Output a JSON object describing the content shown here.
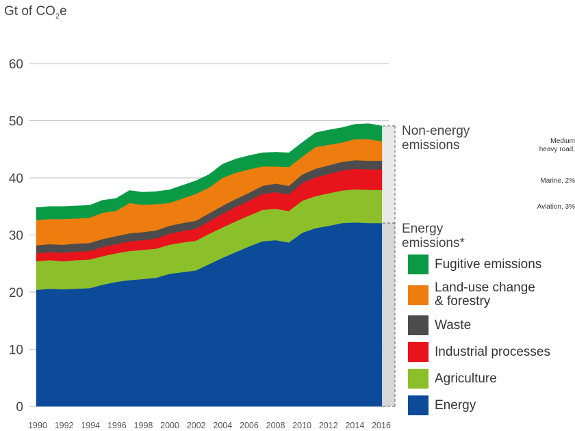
{
  "unit_label": {
    "main": "Gt of CO",
    "sub": "2",
    "suffix": "e"
  },
  "brackets": {
    "non_energy": "Non-energy\nemissions",
    "energy": "Energy\nemissions*"
  },
  "side_notes": {
    "road": "Medium\nheavy road,",
    "marine": "Marine, 2%",
    "aviation": "Aviation, 3%"
  },
  "legend": [
    {
      "label": "Fugitive emissions",
      "color": "#0a9a45"
    },
    {
      "label": "Land-use change\n& forestry",
      "color": "#ee7d0f"
    },
    {
      "label": "Waste",
      "color": "#4c4c4c"
    },
    {
      "label": "Industrial processes",
      "color": "#e8141c"
    },
    {
      "label": "Agriculture",
      "color": "#8cc02b"
    },
    {
      "label": "Energy",
      "color": "#0c4a9a"
    }
  ],
  "chart_data": {
    "type": "area",
    "stacked": true,
    "ylabel": "Gt of CO2e",
    "ylim": [
      0,
      60
    ],
    "yticks": [
      0,
      10,
      20,
      30,
      40,
      50,
      60
    ],
    "xticks": [
      1990,
      1992,
      1994,
      1996,
      1998,
      2000,
      2002,
      2004,
      2006,
      2008,
      2010,
      2012,
      2014,
      2016
    ],
    "grid": "horizontal",
    "x": [
      1990,
      1991,
      1992,
      1993,
      1994,
      1995,
      1996,
      1997,
      1998,
      1999,
      2000,
      2001,
      2002,
      2003,
      2004,
      2005,
      2006,
      2007,
      2008,
      2009,
      2010,
      2011,
      2012,
      2013,
      2014,
      2015,
      2016
    ],
    "series": [
      {
        "name": "Energy",
        "color": "#0c4a9a",
        "values": [
          20.4,
          20.6,
          20.5,
          20.6,
          20.7,
          21.3,
          21.8,
          22.1,
          22.3,
          22.5,
          23.2,
          23.5,
          23.8,
          24.9,
          26.0,
          27.0,
          28.0,
          28.9,
          29.1,
          28.7,
          30.4,
          31.2,
          31.6,
          32.1,
          32.2,
          32.1,
          32.1
        ]
      },
      {
        "name": "Agriculture",
        "color": "#8cc02b",
        "values": [
          5.0,
          5.0,
          4.9,
          5.0,
          5.0,
          5.0,
          5.0,
          5.1,
          5.1,
          5.1,
          5.1,
          5.2,
          5.2,
          5.3,
          5.3,
          5.4,
          5.4,
          5.5,
          5.5,
          5.5,
          5.6,
          5.6,
          5.7,
          5.7,
          5.8,
          5.8,
          5.8
        ]
      },
      {
        "name": "Industrial processes",
        "color": "#e8141c",
        "values": [
          1.4,
          1.4,
          1.5,
          1.5,
          1.5,
          1.6,
          1.6,
          1.7,
          1.7,
          1.8,
          1.9,
          2.0,
          2.1,
          2.2,
          2.4,
          2.5,
          2.6,
          2.8,
          2.9,
          2.9,
          3.1,
          3.3,
          3.4,
          3.5,
          3.6,
          3.6,
          3.6
        ]
      },
      {
        "name": "Waste",
        "color": "#4c4c4c",
        "values": [
          1.4,
          1.4,
          1.4,
          1.4,
          1.4,
          1.4,
          1.4,
          1.4,
          1.4,
          1.4,
          1.4,
          1.4,
          1.4,
          1.4,
          1.4,
          1.4,
          1.4,
          1.4,
          1.5,
          1.5,
          1.5,
          1.5,
          1.5,
          1.5,
          1.5,
          1.5,
          1.5
        ]
      },
      {
        "name": "Land-use change & forestry",
        "color": "#ee7d0f",
        "values": [
          4.4,
          4.4,
          4.5,
          4.4,
          4.4,
          4.6,
          4.4,
          5.3,
          4.8,
          4.6,
          4.0,
          4.3,
          4.7,
          4.5,
          4.9,
          4.6,
          4.1,
          3.4,
          3.0,
          3.3,
          3.1,
          3.8,
          3.6,
          3.4,
          3.7,
          3.8,
          3.4
        ]
      },
      {
        "name": "Fugitive emissions",
        "color": "#0a9a45",
        "values": [
          2.2,
          2.2,
          2.2,
          2.2,
          2.2,
          2.2,
          2.2,
          2.2,
          2.2,
          2.2,
          2.3,
          2.3,
          2.3,
          2.3,
          2.4,
          2.4,
          2.4,
          2.4,
          2.5,
          2.5,
          2.5,
          2.5,
          2.6,
          2.6,
          2.6,
          2.7,
          2.7
        ]
      }
    ]
  }
}
